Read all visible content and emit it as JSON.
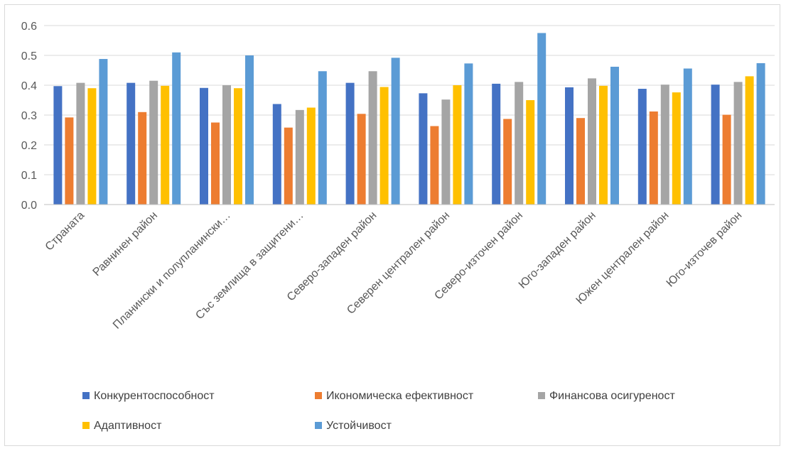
{
  "chart_data": {
    "type": "bar",
    "categories": [
      "Страната",
      "Равнинен район",
      "Планински и полупланински…",
      "Със землища в защитени…",
      "Северо-западен район",
      "Северен централен район",
      "Северо-източен район",
      "Юго-западен район",
      "Южен централен район",
      "Юго-източев район"
    ],
    "series": [
      {
        "name": "Конкурентоспособност",
        "color": "#4472C4",
        "values": [
          0.397,
          0.408,
          0.391,
          0.337,
          0.408,
          0.373,
          0.405,
          0.393,
          0.388,
          0.402
        ]
      },
      {
        "name": "Икономическа ефективност",
        "color": "#ED7D31",
        "values": [
          0.292,
          0.31,
          0.275,
          0.258,
          0.304,
          0.263,
          0.287,
          0.29,
          0.312,
          0.301
        ]
      },
      {
        "name": "Финансова осигуреност",
        "color": "#A5A5A5",
        "values": [
          0.408,
          0.415,
          0.4,
          0.317,
          0.447,
          0.352,
          0.411,
          0.423,
          0.402,
          0.411
        ]
      },
      {
        "name": "Адаптивност",
        "color": "#FFC000",
        "values": [
          0.39,
          0.398,
          0.39,
          0.325,
          0.394,
          0.4,
          0.35,
          0.398,
          0.376,
          0.43
        ]
      },
      {
        "name": "Устойчивост",
        "color": "#5B9BD5",
        "values": [
          0.488,
          0.51,
          0.5,
          0.447,
          0.492,
          0.473,
          0.575,
          0.462,
          0.456,
          0.474
        ]
      }
    ],
    "yticks": [
      "0.0",
      "0.1",
      "0.2",
      "0.3",
      "0.4",
      "0.5",
      "0.6"
    ],
    "ylim": [
      0,
      0.6
    ],
    "grid": true,
    "legend_position": "bottom",
    "title": "",
    "xlabel": "",
    "ylabel": ""
  }
}
